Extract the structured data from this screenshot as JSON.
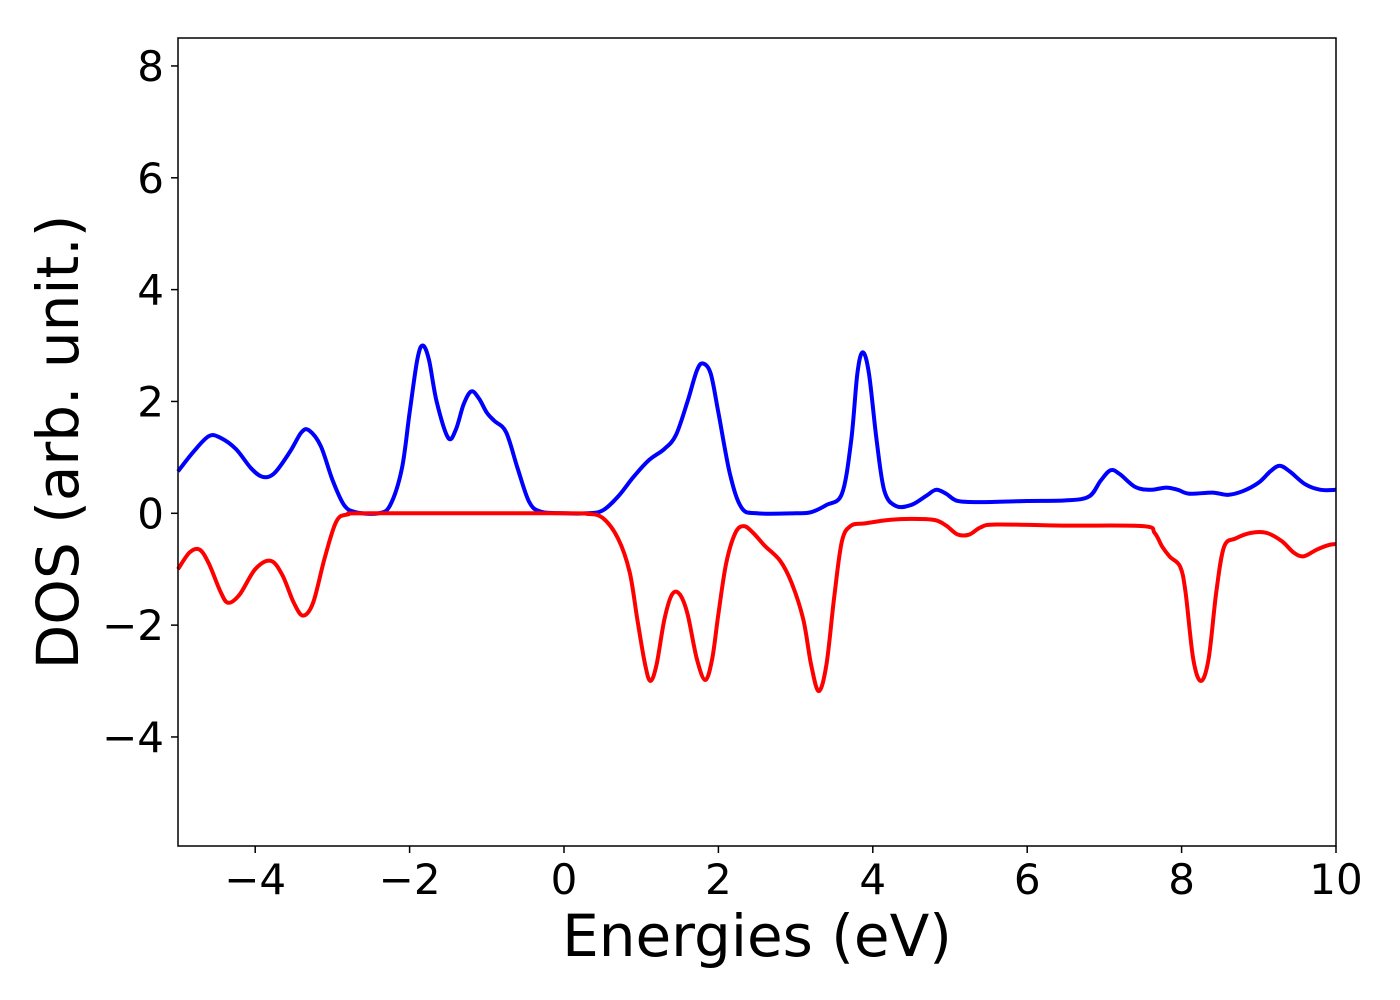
{
  "chart_data": {
    "type": "line",
    "title": "",
    "xlabel": "Energies (eV)",
    "ylabel": "DOS (arb. unit.)",
    "xlim": [
      -5,
      10
    ],
    "ylim": [
      -5.95,
      8.5
    ],
    "xticks": [
      -4,
      -2,
      0,
      2,
      4,
      6,
      8,
      10
    ],
    "xtick_labels": [
      "−4",
      "−2",
      "0",
      "2",
      "4",
      "6",
      "8",
      "10"
    ],
    "yticks": [
      -4,
      -2,
      0,
      2,
      4,
      6,
      8
    ],
    "ytick_labels": [
      "−4",
      "−2",
      "0",
      "2",
      "4",
      "6",
      "8"
    ],
    "grid": false,
    "legend": "none",
    "series": [
      {
        "color": "#0000ff",
        "points": [
          [
            -5.0,
            0.75
          ],
          [
            -4.8,
            1.1
          ],
          [
            -4.6,
            1.38
          ],
          [
            -4.45,
            1.35
          ],
          [
            -4.25,
            1.15
          ],
          [
            -4.05,
            0.8
          ],
          [
            -3.9,
            0.65
          ],
          [
            -3.75,
            0.72
          ],
          [
            -3.55,
            1.1
          ],
          [
            -3.4,
            1.45
          ],
          [
            -3.3,
            1.48
          ],
          [
            -3.15,
            1.2
          ],
          [
            -3.0,
            0.6
          ],
          [
            -2.85,
            0.15
          ],
          [
            -2.7,
            0.02
          ],
          [
            -2.4,
            0.0
          ],
          [
            -2.25,
            0.15
          ],
          [
            -2.1,
            0.8
          ],
          [
            -2.0,
            1.8
          ],
          [
            -1.9,
            2.75
          ],
          [
            -1.83,
            3.0
          ],
          [
            -1.75,
            2.75
          ],
          [
            -1.65,
            2.0
          ],
          [
            -1.5,
            1.35
          ],
          [
            -1.4,
            1.5
          ],
          [
            -1.3,
            1.95
          ],
          [
            -1.2,
            2.18
          ],
          [
            -1.1,
            2.05
          ],
          [
            -1.0,
            1.8
          ],
          [
            -0.9,
            1.65
          ],
          [
            -0.75,
            1.45
          ],
          [
            -0.6,
            0.8
          ],
          [
            -0.45,
            0.2
          ],
          [
            -0.3,
            0.03
          ],
          [
            0.0,
            0.0
          ],
          [
            0.3,
            0.0
          ],
          [
            0.5,
            0.05
          ],
          [
            0.7,
            0.3
          ],
          [
            0.9,
            0.65
          ],
          [
            1.1,
            0.95
          ],
          [
            1.3,
            1.15
          ],
          [
            1.45,
            1.4
          ],
          [
            1.6,
            2.0
          ],
          [
            1.72,
            2.55
          ],
          [
            1.8,
            2.68
          ],
          [
            1.9,
            2.5
          ],
          [
            2.0,
            1.8
          ],
          [
            2.15,
            0.7
          ],
          [
            2.3,
            0.1
          ],
          [
            2.5,
            0.0
          ],
          [
            3.0,
            0.0
          ],
          [
            3.2,
            0.02
          ],
          [
            3.4,
            0.15
          ],
          [
            3.6,
            0.35
          ],
          [
            3.72,
            1.3
          ],
          [
            3.8,
            2.5
          ],
          [
            3.87,
            2.88
          ],
          [
            3.95,
            2.5
          ],
          [
            4.05,
            1.3
          ],
          [
            4.15,
            0.4
          ],
          [
            4.3,
            0.13
          ],
          [
            4.5,
            0.15
          ],
          [
            4.7,
            0.32
          ],
          [
            4.82,
            0.42
          ],
          [
            4.95,
            0.35
          ],
          [
            5.1,
            0.22
          ],
          [
            5.4,
            0.2
          ],
          [
            6.0,
            0.22
          ],
          [
            6.5,
            0.23
          ],
          [
            6.8,
            0.3
          ],
          [
            6.95,
            0.58
          ],
          [
            7.08,
            0.77
          ],
          [
            7.2,
            0.7
          ],
          [
            7.4,
            0.47
          ],
          [
            7.6,
            0.42
          ],
          [
            7.8,
            0.46
          ],
          [
            7.95,
            0.42
          ],
          [
            8.1,
            0.35
          ],
          [
            8.4,
            0.37
          ],
          [
            8.6,
            0.33
          ],
          [
            8.8,
            0.4
          ],
          [
            9.0,
            0.55
          ],
          [
            9.15,
            0.75
          ],
          [
            9.27,
            0.85
          ],
          [
            9.4,
            0.75
          ],
          [
            9.6,
            0.52
          ],
          [
            9.8,
            0.42
          ],
          [
            10.0,
            0.42
          ]
        ]
      },
      {
        "color": "#ff0000",
        "points": [
          [
            -5.0,
            -1.0
          ],
          [
            -4.85,
            -0.7
          ],
          [
            -4.72,
            -0.65
          ],
          [
            -4.6,
            -0.9
          ],
          [
            -4.45,
            -1.4
          ],
          [
            -4.35,
            -1.6
          ],
          [
            -4.2,
            -1.45
          ],
          [
            -4.0,
            -1.0
          ],
          [
            -3.8,
            -0.85
          ],
          [
            -3.65,
            -1.1
          ],
          [
            -3.5,
            -1.6
          ],
          [
            -3.38,
            -1.83
          ],
          [
            -3.25,
            -1.6
          ],
          [
            -3.1,
            -0.8
          ],
          [
            -2.95,
            -0.15
          ],
          [
            -2.8,
            -0.02
          ],
          [
            -2.5,
            0.0
          ],
          [
            0.0,
            0.0
          ],
          [
            0.3,
            -0.01
          ],
          [
            0.5,
            -0.08
          ],
          [
            0.7,
            -0.45
          ],
          [
            0.85,
            -1.05
          ],
          [
            0.95,
            -1.9
          ],
          [
            1.05,
            -2.7
          ],
          [
            1.12,
            -3.0
          ],
          [
            1.2,
            -2.7
          ],
          [
            1.3,
            -1.9
          ],
          [
            1.4,
            -1.45
          ],
          [
            1.5,
            -1.45
          ],
          [
            1.6,
            -1.8
          ],
          [
            1.72,
            -2.6
          ],
          [
            1.83,
            -2.98
          ],
          [
            1.92,
            -2.6
          ],
          [
            2.0,
            -1.8
          ],
          [
            2.1,
            -0.9
          ],
          [
            2.22,
            -0.35
          ],
          [
            2.33,
            -0.23
          ],
          [
            2.45,
            -0.35
          ],
          [
            2.6,
            -0.58
          ],
          [
            2.8,
            -0.85
          ],
          [
            2.95,
            -1.25
          ],
          [
            3.1,
            -1.9
          ],
          [
            3.2,
            -2.7
          ],
          [
            3.3,
            -3.18
          ],
          [
            3.4,
            -2.7
          ],
          [
            3.5,
            -1.5
          ],
          [
            3.6,
            -0.5
          ],
          [
            3.72,
            -0.22
          ],
          [
            3.9,
            -0.18
          ],
          [
            4.2,
            -0.12
          ],
          [
            4.5,
            -0.1
          ],
          [
            4.8,
            -0.12
          ],
          [
            4.95,
            -0.22
          ],
          [
            5.1,
            -0.38
          ],
          [
            5.25,
            -0.38
          ],
          [
            5.4,
            -0.25
          ],
          [
            5.6,
            -0.2
          ],
          [
            6.5,
            -0.22
          ],
          [
            7.5,
            -0.23
          ],
          [
            7.65,
            -0.35
          ],
          [
            7.75,
            -0.6
          ],
          [
            7.85,
            -0.78
          ],
          [
            7.98,
            -0.95
          ],
          [
            8.05,
            -1.4
          ],
          [
            8.15,
            -2.6
          ],
          [
            8.25,
            -3.0
          ],
          [
            8.35,
            -2.6
          ],
          [
            8.45,
            -1.4
          ],
          [
            8.55,
            -0.6
          ],
          [
            8.7,
            -0.45
          ],
          [
            8.9,
            -0.35
          ],
          [
            9.1,
            -0.35
          ],
          [
            9.3,
            -0.5
          ],
          [
            9.45,
            -0.7
          ],
          [
            9.58,
            -0.77
          ],
          [
            9.75,
            -0.65
          ],
          [
            9.9,
            -0.57
          ],
          [
            10.0,
            -0.55
          ]
        ]
      }
    ]
  }
}
